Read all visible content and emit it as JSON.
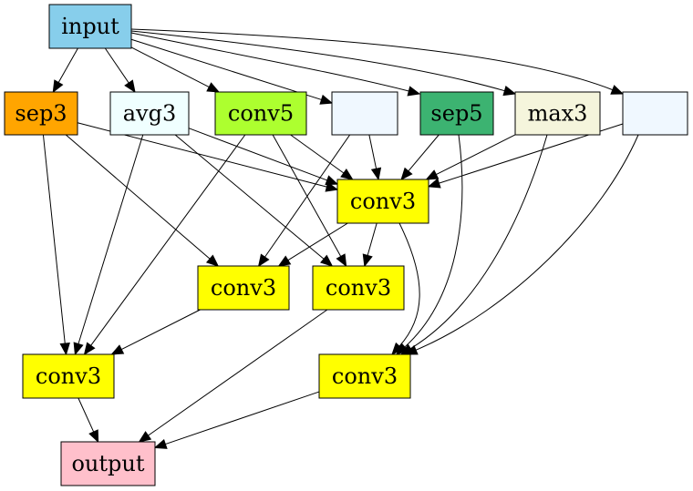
{
  "diagram": {
    "nodes": [
      {
        "id": "input",
        "label": "input",
        "color": "#87ceeb"
      },
      {
        "id": "sep3",
        "label": "sep3",
        "color": "#ffa500"
      },
      {
        "id": "avg3",
        "label": "avg3",
        "color": "#f0ffff"
      },
      {
        "id": "conv5",
        "label": "conv5",
        "color": "#adff2f"
      },
      {
        "id": "blank1",
        "label": "",
        "color": "#f0f8ff"
      },
      {
        "id": "sep5",
        "label": "sep5",
        "color": "#3cb371"
      },
      {
        "id": "max3",
        "label": "max3",
        "color": "#f5f5dc"
      },
      {
        "id": "blank2",
        "label": "",
        "color": "#f0f8ff"
      },
      {
        "id": "c3a",
        "label": "conv3",
        "color": "#ffff00"
      },
      {
        "id": "c3b",
        "label": "conv3",
        "color": "#ffff00"
      },
      {
        "id": "c3c",
        "label": "conv3",
        "color": "#ffff00"
      },
      {
        "id": "c3d",
        "label": "conv3",
        "color": "#ffff00"
      },
      {
        "id": "c3e",
        "label": "conv3",
        "color": "#ffff00"
      },
      {
        "id": "output",
        "label": "output",
        "color": "#ffc0cb"
      }
    ],
    "edges": [
      [
        "input",
        "sep3"
      ],
      [
        "input",
        "avg3"
      ],
      [
        "input",
        "conv5"
      ],
      [
        "input",
        "blank1"
      ],
      [
        "input",
        "sep5"
      ],
      [
        "input",
        "max3"
      ],
      [
        "input",
        "blank2"
      ],
      [
        "sep3",
        "c3a"
      ],
      [
        "avg3",
        "c3a"
      ],
      [
        "conv5",
        "c3a"
      ],
      [
        "blank1",
        "c3a"
      ],
      [
        "sep5",
        "c3a"
      ],
      [
        "max3",
        "c3a"
      ],
      [
        "blank2",
        "c3a"
      ],
      [
        "sep3",
        "c3b"
      ],
      [
        "blank1",
        "c3b"
      ],
      [
        "c3a",
        "c3b"
      ],
      [
        "avg3",
        "c3c"
      ],
      [
        "conv5",
        "c3c"
      ],
      [
        "c3a",
        "c3c"
      ],
      [
        "sep3",
        "c3d"
      ],
      [
        "avg3",
        "c3d"
      ],
      [
        "conv5",
        "c3d"
      ],
      [
        "c3b",
        "c3d"
      ],
      [
        "c3a",
        "c3e"
      ],
      [
        "sep5",
        "c3e"
      ],
      [
        "max3",
        "c3e"
      ],
      [
        "blank2",
        "c3e"
      ],
      [
        "c3d",
        "output"
      ],
      [
        "c3c",
        "output"
      ],
      [
        "c3e",
        "output"
      ]
    ]
  }
}
